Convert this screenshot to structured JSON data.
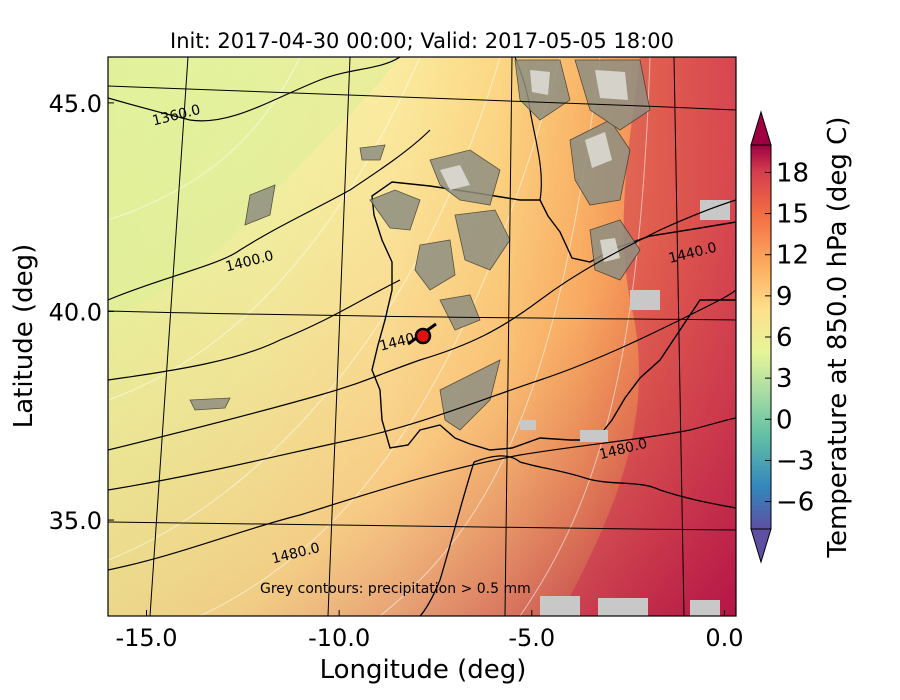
{
  "title": "Init: 2017-04-30 00:00; Valid: 2017-05-05 18:00",
  "xlabel": "Longitude (deg)",
  "ylabel": "Latitude (deg)",
  "colorbar_label": "Temperature at 850.0 hPa (deg C)",
  "annotation": "Grey contours: precipitation  > 0.5 mm",
  "x_ticks": [
    {
      "value": -15,
      "label": "-15.0"
    },
    {
      "value": -10,
      "label": "-10.0"
    },
    {
      "value": -5,
      "label": "-5.0"
    },
    {
      "value": 0,
      "label": "0.0"
    }
  ],
  "y_ticks": [
    {
      "value": 45,
      "label": "45.0"
    },
    {
      "value": 40,
      "label": "40.0"
    },
    {
      "value": 35,
      "label": "35.0"
    }
  ],
  "colorbar_ticks": [
    {
      "value": -6,
      "label": "−6"
    },
    {
      "value": -3,
      "label": "−3"
    },
    {
      "value": 0,
      "label": "0"
    },
    {
      "value": 3,
      "label": "3"
    },
    {
      "value": 6,
      "label": "6"
    },
    {
      "value": 9,
      "label": "9"
    },
    {
      "value": 12,
      "label": "12"
    },
    {
      "value": 15,
      "label": "15"
    },
    {
      "value": 18,
      "label": "18"
    }
  ],
  "contour_labels": [
    {
      "text": "1360.0",
      "lon": -14.2,
      "lat": 44.6
    },
    {
      "text": "1400.0",
      "lon": -12.3,
      "lat": 41.1
    },
    {
      "text": "1440.0",
      "lon": -8.3,
      "lat": 39.2
    },
    {
      "text": "1440.0",
      "lon": -0.8,
      "lat": 41.3
    },
    {
      "text": "1480.0",
      "lon": -2.6,
      "lat": 36.6
    },
    {
      "text": "1480.0",
      "lon": -11.1,
      "lat": 34.1
    }
  ],
  "marker": {
    "lon": -7.7,
    "lat": 39.4,
    "color": "#e41010"
  },
  "chart_data": {
    "type": "heatmap",
    "title": "Init: 2017-04-30 00:00; Valid: 2017-05-05 18:00",
    "xlabel": "Longitude (deg)",
    "ylabel": "Latitude (deg)",
    "xlim": [
      -16.0,
      0.3
    ],
    "ylim": [
      32.7,
      46.1
    ],
    "colorbar": {
      "label": "Temperature at 850.0 hPa (deg C)",
      "min": -8,
      "max": 20,
      "extend": "both"
    },
    "geopotential_contours_m": [
      1360,
      1400,
      1440,
      1480
    ],
    "precipitation_threshold_mm": 0.5
  }
}
